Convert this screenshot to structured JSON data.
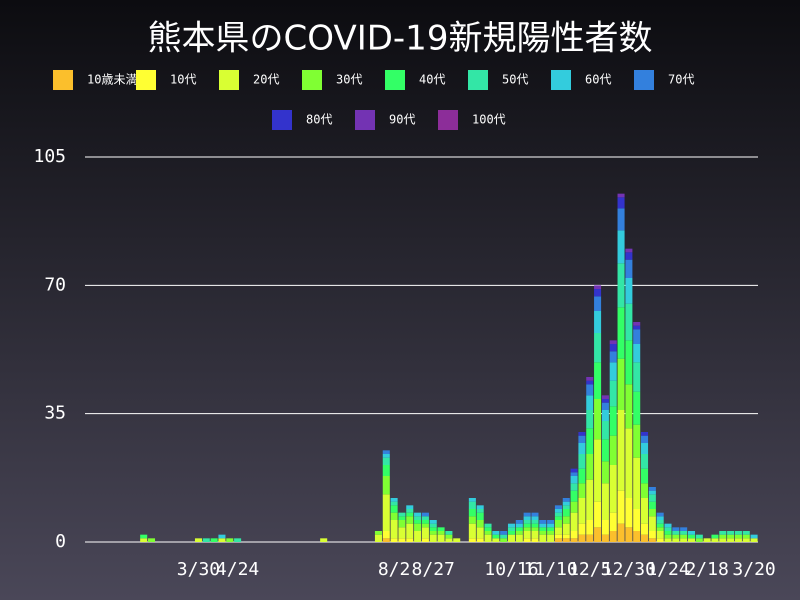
{
  "chart_data": {
    "type": "stacked_bar",
    "title": "熊本県のCOVID-19新規陽性者数",
    "categories": [
      null,
      null,
      null,
      null,
      null,
      null,
      null,
      null,
      null,
      null,
      null,
      null,
      null,
      null,
      "3/30",
      null,
      null,
      null,
      null,
      "4/24",
      null,
      null,
      null,
      null,
      null,
      null,
      null,
      null,
      null,
      null,
      null,
      null,
      null,
      null,
      null,
      null,
      null,
      null,
      null,
      "8/2",
      null,
      null,
      null,
      null,
      "8/27",
      null,
      null,
      null,
      null,
      null,
      null,
      null,
      null,
      null,
      "10/16",
      null,
      null,
      null,
      null,
      "11/10",
      null,
      null,
      null,
      null,
      "12/5",
      null,
      null,
      null,
      null,
      "12/30",
      null,
      null,
      null,
      null,
      "1/24",
      null,
      null,
      null,
      null,
      "2/18",
      null,
      null,
      null,
      null,
      null,
      "3/20"
    ],
    "series": [
      {
        "name": "10歳未満",
        "color": "#fbbf2c",
        "values": [
          0,
          0,
          0,
          0,
          0,
          0,
          0,
          0,
          0,
          0,
          0,
          0,
          0,
          0,
          0,
          0,
          0,
          0,
          0,
          0,
          0,
          0,
          0,
          0,
          0,
          0,
          0,
          0,
          0,
          0,
          0,
          0,
          0,
          0,
          0,
          0,
          0,
          0,
          1,
          0,
          0,
          0,
          0,
          0,
          0,
          0,
          0,
          0,
          0,
          0,
          0,
          0,
          0,
          0,
          0,
          0,
          0,
          0,
          0,
          0,
          1,
          1,
          1,
          2,
          2,
          4,
          2,
          3,
          5,
          4,
          3,
          2,
          1,
          0,
          0,
          0,
          0,
          0,
          0,
          0,
          0,
          0,
          0,
          0,
          0,
          0
        ]
      },
      {
        "name": "10代",
        "color": "#ffff33",
        "values": [
          0,
          0,
          0,
          0,
          0,
          0,
          0,
          0,
          0,
          0,
          0,
          0,
          0,
          0,
          0,
          0,
          0,
          0,
          0,
          0,
          0,
          0,
          0,
          0,
          0,
          0,
          0,
          0,
          0,
          0,
          0,
          0,
          0,
          0,
          0,
          0,
          0,
          0,
          2,
          1,
          1,
          1,
          0,
          1,
          0,
          0,
          0,
          0,
          0,
          1,
          1,
          0,
          0,
          0,
          0,
          0,
          1,
          1,
          0,
          0,
          1,
          1,
          2,
          3,
          4,
          7,
          4,
          5,
          9,
          8,
          6,
          3,
          2,
          1,
          0,
          0,
          0,
          0,
          0,
          0,
          0,
          0,
          0,
          0,
          0,
          0
        ]
      },
      {
        "name": "20代",
        "color": "#d9ff33",
        "values": [
          0,
          0,
          0,
          0,
          0,
          0,
          0,
          1,
          0,
          0,
          0,
          0,
          0,
          0,
          1,
          0,
          0,
          1,
          0,
          0,
          0,
          0,
          0,
          0,
          0,
          0,
          0,
          0,
          0,
          0,
          1,
          0,
          0,
          0,
          0,
          0,
          0,
          2,
          10,
          5,
          3,
          4,
          3,
          3,
          2,
          2,
          1,
          1,
          0,
          4,
          3,
          2,
          1,
          0,
          2,
          2,
          2,
          2,
          2,
          2,
          2,
          3,
          5,
          7,
          11,
          17,
          10,
          13,
          22,
          19,
          14,
          7,
          4,
          2,
          1,
          1,
          1,
          1,
          0,
          1,
          1,
          1,
          1,
          1,
          1,
          1
        ]
      },
      {
        "name": "30代",
        "color": "#80ff33",
        "values": [
          0,
          0,
          0,
          0,
          0,
          0,
          0,
          0,
          1,
          0,
          0,
          0,
          0,
          0,
          0,
          0,
          0,
          0,
          1,
          0,
          0,
          0,
          0,
          0,
          0,
          0,
          0,
          0,
          0,
          0,
          0,
          0,
          0,
          0,
          0,
          0,
          0,
          1,
          5,
          2,
          2,
          2,
          2,
          1,
          1,
          1,
          1,
          0,
          0,
          2,
          2,
          1,
          0,
          1,
          0,
          1,
          1,
          1,
          1,
          1,
          2,
          2,
          3,
          4,
          7,
          11,
          6,
          8,
          14,
          12,
          9,
          4,
          2,
          1,
          1,
          1,
          1,
          0,
          1,
          0,
          0,
          1,
          1,
          1,
          1,
          0
        ]
      },
      {
        "name": "40代",
        "color": "#33ff66",
        "values": [
          0,
          0,
          0,
          0,
          0,
          0,
          0,
          1,
          0,
          0,
          0,
          0,
          0,
          0,
          0,
          0,
          1,
          0,
          0,
          0,
          0,
          0,
          0,
          0,
          0,
          0,
          0,
          0,
          0,
          0,
          0,
          0,
          0,
          0,
          0,
          0,
          0,
          0,
          3,
          2,
          1,
          1,
          1,
          1,
          1,
          1,
          0,
          0,
          0,
          2,
          2,
          1,
          1,
          0,
          1,
          1,
          1,
          1,
          1,
          1,
          1,
          2,
          3,
          4,
          7,
          10,
          6,
          8,
          14,
          12,
          9,
          4,
          2,
          1,
          1,
          0,
          0,
          1,
          0,
          0,
          1,
          0,
          0,
          0,
          0,
          0
        ]
      },
      {
        "name": "50代",
        "color": "#33e6a6",
        "values": [
          0,
          0,
          0,
          0,
          0,
          0,
          0,
          0,
          0,
          0,
          0,
          0,
          0,
          0,
          0,
          1,
          0,
          0,
          0,
          1,
          0,
          0,
          0,
          0,
          0,
          0,
          0,
          0,
          0,
          0,
          0,
          0,
          0,
          0,
          0,
          0,
          0,
          0,
          2,
          1,
          1,
          1,
          1,
          1,
          1,
          0,
          1,
          0,
          0,
          2,
          1,
          1,
          0,
          1,
          1,
          0,
          1,
          1,
          0,
          0,
          1,
          1,
          2,
          4,
          5,
          8,
          5,
          7,
          12,
          10,
          8,
          4,
          2,
          1,
          1,
          1,
          1,
          0,
          1,
          0,
          0,
          1,
          1,
          1,
          1,
          0
        ]
      },
      {
        "name": "60代",
        "color": "#33ccdd",
        "values": [
          0,
          0,
          0,
          0,
          0,
          0,
          0,
          0,
          0,
          0,
          0,
          0,
          0,
          0,
          0,
          0,
          0,
          1,
          0,
          0,
          0,
          0,
          0,
          0,
          0,
          0,
          0,
          0,
          0,
          0,
          0,
          0,
          0,
          0,
          0,
          0,
          0,
          0,
          1,
          1,
          0,
          1,
          1,
          0,
          1,
          0,
          0,
          0,
          0,
          1,
          1,
          0,
          1,
          0,
          1,
          1,
          1,
          1,
          1,
          1,
          1,
          1,
          2,
          3,
          4,
          6,
          3,
          5,
          9,
          7,
          5,
          3,
          1,
          1,
          1,
          0,
          0,
          1,
          0,
          0,
          0,
          0,
          0,
          0,
          0,
          1
        ]
      },
      {
        "name": "70代",
        "color": "#3380dd",
        "values": [
          0,
          0,
          0,
          0,
          0,
          0,
          0,
          0,
          0,
          0,
          0,
          0,
          0,
          0,
          0,
          0,
          0,
          0,
          0,
          0,
          0,
          0,
          0,
          0,
          0,
          0,
          0,
          0,
          0,
          0,
          0,
          0,
          0,
          0,
          0,
          0,
          0,
          0,
          1,
          0,
          0,
          0,
          0,
          1,
          0,
          0,
          0,
          0,
          0,
          0,
          0,
          0,
          0,
          1,
          0,
          1,
          1,
          1,
          1,
          1,
          1,
          1,
          1,
          2,
          3,
          4,
          2,
          3,
          6,
          5,
          4,
          2,
          1,
          1,
          0,
          1,
          1,
          0,
          0,
          0,
          0,
          0,
          0,
          0,
          0,
          0
        ]
      },
      {
        "name": "80代",
        "color": "#3333cc",
        "values": [
          0,
          0,
          0,
          0,
          0,
          0,
          0,
          0,
          0,
          0,
          0,
          0,
          0,
          0,
          0,
          0,
          0,
          0,
          0,
          0,
          0,
          0,
          0,
          0,
          0,
          0,
          0,
          0,
          0,
          0,
          0,
          0,
          0,
          0,
          0,
          0,
          0,
          0,
          0,
          0,
          0,
          0,
          0,
          0,
          0,
          0,
          0,
          0,
          0,
          0,
          0,
          0,
          0,
          0,
          0,
          0,
          0,
          0,
          0,
          0,
          0,
          0,
          1,
          1,
          1,
          2,
          1,
          2,
          3,
          2,
          1,
          1,
          0,
          0,
          0,
          0,
          0,
          0,
          0,
          0,
          0,
          0,
          0,
          0,
          0,
          0
        ]
      },
      {
        "name": "90代",
        "color": "#7333b3",
        "values": [
          0,
          0,
          0,
          0,
          0,
          0,
          0,
          0,
          0,
          0,
          0,
          0,
          0,
          0,
          0,
          0,
          0,
          0,
          0,
          0,
          0,
          0,
          0,
          0,
          0,
          0,
          0,
          0,
          0,
          0,
          0,
          0,
          0,
          0,
          0,
          0,
          0,
          0,
          0,
          0,
          0,
          0,
          0,
          0,
          0,
          0,
          0,
          0,
          0,
          0,
          0,
          0,
          0,
          0,
          0,
          0,
          0,
          0,
          0,
          0,
          0,
          0,
          0,
          0,
          1,
          1,
          1,
          1,
          1,
          1,
          1,
          0,
          0,
          0,
          0,
          0,
          0,
          0,
          0,
          0,
          0,
          0,
          0,
          0,
          0,
          0
        ]
      },
      {
        "name": "100代",
        "color": "#8c2d99",
        "values": [
          0,
          0,
          0,
          0,
          0,
          0,
          0,
          0,
          0,
          0,
          0,
          0,
          0,
          0,
          0,
          0,
          0,
          0,
          0,
          0,
          0,
          0,
          0,
          0,
          0,
          0,
          0,
          0,
          0,
          0,
          0,
          0,
          0,
          0,
          0,
          0,
          0,
          0,
          0,
          0,
          0,
          0,
          0,
          0,
          0,
          0,
          0,
          0,
          0,
          0,
          0,
          0,
          0,
          0,
          0,
          0,
          0,
          0,
          0,
          0,
          0,
          0,
          0,
          0,
          0,
          0,
          0,
          0,
          0,
          0,
          0,
          0,
          0,
          0,
          0,
          0,
          0,
          0,
          0,
          0,
          0,
          0,
          0,
          0,
          0,
          0
        ]
      }
    ],
    "ylim": [
      0,
      105
    ],
    "yticks": [
      0,
      35,
      70,
      105
    ],
    "grid": true
  }
}
